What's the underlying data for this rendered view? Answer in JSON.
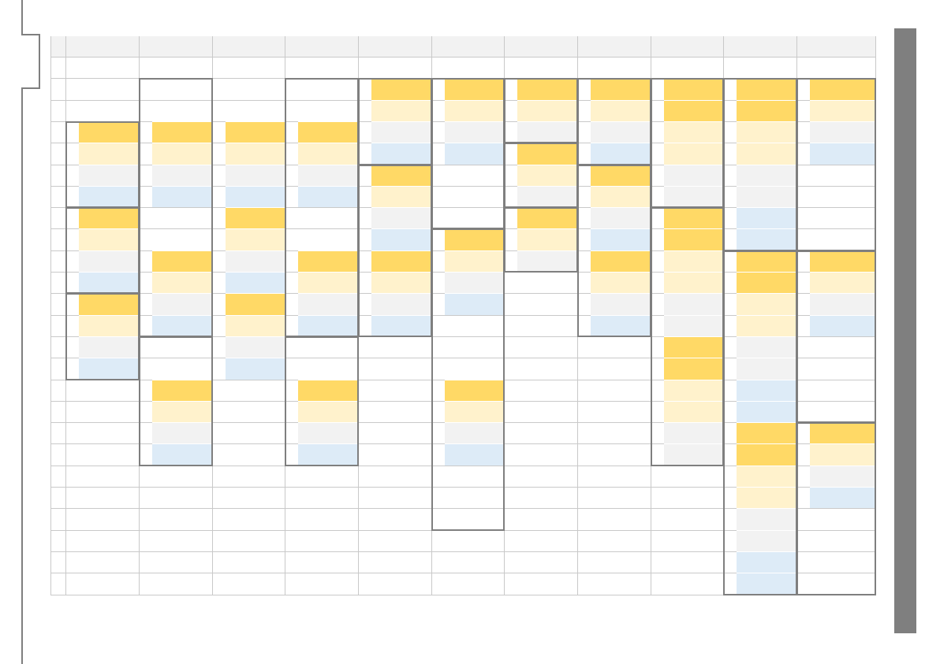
{
  "colors": {
    "dark_gold": "#ffd966",
    "light_gold": "#fff2cc",
    "light_gray": "#f2f2f2",
    "light_blue": "#ddebf7",
    "block_border": "#7f7f7f",
    "grid_line": "#c9c9c9",
    "header_fill": "#f2f2f2",
    "side_panel": "#7f7f7f"
  },
  "legend_text": []
}
